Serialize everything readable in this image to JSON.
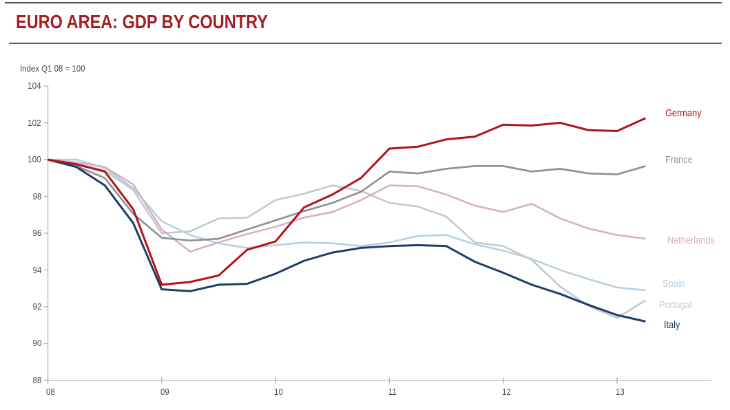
{
  "header": {
    "title": "EURO AREA: GDP BY COUNTRY"
  },
  "theme": {
    "title_color": "#a41e23",
    "axis_line_color": "#c5c6ca",
    "tick_color": "#b4b5b9",
    "tick_label_color": "#44484f",
    "background": "#ffffff"
  },
  "chart_data": {
    "type": "line",
    "note": "Index Q1 08 = 100",
    "x": [
      "08Q1",
      "08Q2",
      "08Q3",
      "08Q4",
      "09Q1",
      "09Q2",
      "09Q3",
      "09Q4",
      "10Q1",
      "10Q2",
      "10Q3",
      "10Q4",
      "11Q1",
      "11Q2",
      "11Q3",
      "11Q4",
      "12Q1",
      "12Q2",
      "12Q3",
      "12Q4",
      "13Q1",
      "13Q2"
    ],
    "x_tick_labels": [
      "08",
      "09",
      "10",
      "11",
      "12",
      "13"
    ],
    "y_tick_labels": [
      "104",
      "102",
      "100",
      "98",
      "96",
      "94",
      "92",
      "90",
      "88"
    ],
    "ylim": [
      88,
      104
    ],
    "grid": false,
    "legend_position": "right",
    "series": [
      {
        "name": "Germany",
        "color": "#b11418",
        "stroke_width": 3,
        "z": 6,
        "values": [
          100,
          99.75,
          99.35,
          97.3,
          93.2,
          93.35,
          93.7,
          95.1,
          95.55,
          97.4,
          98.1,
          99.0,
          100.6,
          100.7,
          101.1,
          101.25,
          101.9,
          101.85,
          102.0,
          101.6,
          101.55,
          102.25
        ]
      },
      {
        "name": "France",
        "color": "#8f9295",
        "stroke_width": 2.7,
        "z": 4,
        "values": [
          100,
          99.65,
          99.0,
          97.05,
          95.75,
          95.6,
          95.7,
          96.2,
          96.7,
          97.2,
          97.65,
          98.25,
          99.35,
          99.25,
          99.5,
          99.65,
          99.65,
          99.35,
          99.5,
          99.25,
          99.2,
          99.65
        ]
      },
      {
        "name": "Netherlands",
        "color": "#d9aec6",
        "stroke_width": 2.6,
        "z": 3,
        "values": [
          100,
          99.85,
          99.6,
          98.65,
          96.2,
          95.0,
          95.5,
          95.95,
          96.35,
          96.85,
          97.15,
          97.8,
          98.6,
          98.55,
          98.1,
          97.5,
          97.15,
          97.6,
          96.8,
          96.25,
          95.9,
          95.7
        ]
      },
      {
        "name": "Spain",
        "color": "#b8cfe3",
        "stroke_width": 2.6,
        "z": 2,
        "values": [
          100,
          100.0,
          99.55,
          98.45,
          96.65,
          95.9,
          95.45,
          95.2,
          95.35,
          95.5,
          95.45,
          95.3,
          95.5,
          95.85,
          95.9,
          95.4,
          95.05,
          94.6,
          94.0,
          93.5,
          93.05,
          92.9
        ]
      },
      {
        "name": "Portugal",
        "color": "#c6c8cb",
        "stroke_width": 2.6,
        "z": 1,
        "values": [
          100,
          99.8,
          99.4,
          98.35,
          96.0,
          96.1,
          96.8,
          96.85,
          97.8,
          98.15,
          98.6,
          98.3,
          97.65,
          97.45,
          96.9,
          95.5,
          95.3,
          94.55,
          93.1,
          92.05,
          91.4,
          92.35
        ]
      },
      {
        "name": "Italy",
        "color": "#1f3d69",
        "stroke_width": 3,
        "z": 5,
        "values": [
          100,
          99.6,
          98.6,
          96.55,
          92.95,
          92.85,
          93.2,
          93.25,
          93.8,
          94.5,
          94.95,
          95.2,
          95.3,
          95.35,
          95.3,
          94.45,
          93.85,
          93.2,
          92.7,
          92.1,
          91.55,
          91.2
        ]
      }
    ]
  }
}
